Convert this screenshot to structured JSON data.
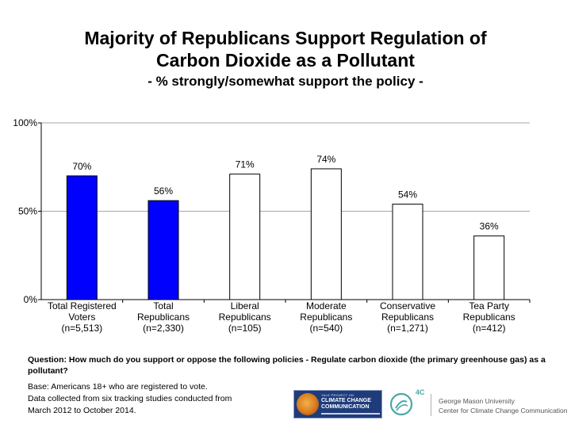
{
  "chart_data": {
    "type": "bar",
    "title": "Majority of Republicans Support Regulation of Carbon Dioxide as a Pollutant",
    "title_lines": [
      "Majority of Republicans Support Regulation of",
      "Carbon Dioxide as a Pollutant"
    ],
    "subtitle": "- % strongly/somewhat support the policy -",
    "categories": [
      "Total Registered Voters (n=5,513)",
      "Total Republicans (n=2,330)",
      "Liberal Republicans (n=105)",
      "Moderate Republicans (n=540)",
      "Conservative Republicans (n=1,271)",
      "Tea Party Republicans (n=412)"
    ],
    "category_lines": [
      [
        "Total Registered",
        "Voters",
        "(n=5,513)"
      ],
      [
        "Total",
        "Republicans",
        "(n=2,330)"
      ],
      [
        "Liberal",
        "Republicans",
        "(n=105)"
      ],
      [
        "Moderate",
        "Republicans",
        "(n=540)"
      ],
      [
        "Conservative",
        "Republicans",
        "(n=1,271)"
      ],
      [
        "Tea Party",
        "Republicans",
        "(n=412)"
      ]
    ],
    "values": [
      70,
      56,
      71,
      74,
      54,
      36
    ],
    "data_labels": [
      "70%",
      "56%",
      "71%",
      "74%",
      "54%",
      "36%"
    ],
    "bar_fills": [
      "#0000ff",
      "#0000ff",
      "#ffffff",
      "#ffffff",
      "#ffffff",
      "#ffffff"
    ],
    "ylim": [
      0,
      100
    ],
    "yticks": [
      0,
      50,
      100
    ],
    "ytick_labels": [
      "0%",
      "50%",
      "100%"
    ],
    "grid": true,
    "legend": "none"
  },
  "notes": {
    "question": "Question: How much do you support or oppose the following policies - Regulate carbon dioxide (the primary greenhouse gas) as a pollutant?",
    "base_lines": [
      "Base: Americans 18+ who are registered to vote.",
      "Data collected from six tracking studies conducted from",
      "March 2012 to October 2014."
    ]
  },
  "logos": {
    "left_small": "YALE PROJECT ON",
    "left_big": "CLIMATE CHANGE COMMUNICATION",
    "right_badge": "4C",
    "right_name_line1": "George Mason University",
    "right_name_line2": "Center for Climate Change Communication"
  },
  "colors": {
    "primary_bar": "#0000ff",
    "secondary_bar": "#ffffff",
    "gridline": "#888888"
  }
}
